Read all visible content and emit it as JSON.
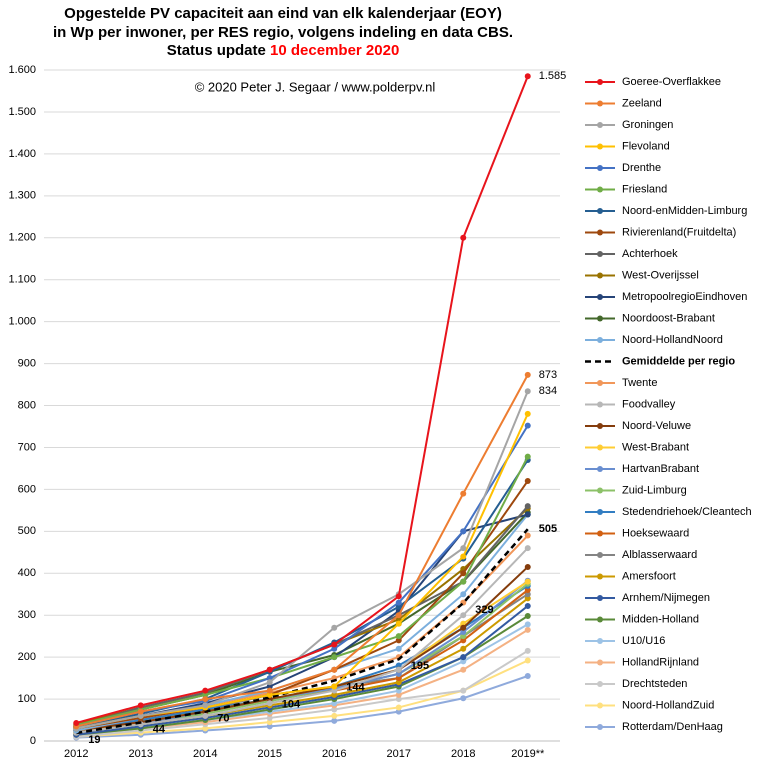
{
  "chart_data": {
    "type": "line",
    "title": "Opgestelde PV capaciteit aan eind van elk kalenderjaar (EOY)",
    "subtitle": "in Wp per inwoner, per RES regio, volgens indeling  en data CBS.",
    "status_label": "Status update",
    "status_date": "10 december 2020",
    "status_date_color": "#ff0000",
    "annotation": "© 2020 Peter J. Segaar / www.polderpv.nl",
    "categories": [
      "2012",
      "2013",
      "2014",
      "2015",
      "2016",
      "2017",
      "2018",
      "2019**"
    ],
    "ylim": [
      0,
      1600
    ],
    "yticks": [
      0,
      100,
      200,
      300,
      400,
      500,
      600,
      700,
      800,
      900,
      {
        "value": 1000,
        "label": "1.000"
      },
      {
        "value": 1100,
        "label": "1.100"
      },
      {
        "value": 1200,
        "label": "1.200"
      },
      {
        "value": 1300,
        "label": "1.300"
      },
      {
        "value": 1400,
        "label": "1.400"
      },
      {
        "value": 1500,
        "label": "1.500"
      },
      {
        "value": 1600,
        "label": "1.600"
      }
    ],
    "grid": true,
    "legend": "right",
    "series": [
      {
        "name": "Goeree-Overflakkee",
        "color": "#e8141c",
        "values": [
          43,
          85,
          120,
          170,
          230,
          345,
          1200,
          1585
        ],
        "value_labels": [
          null,
          null,
          null,
          null,
          null,
          null,
          null,
          "1.585"
        ]
      },
      {
        "name": "Zeeland",
        "color": "#ed7d31",
        "values": [
          35,
          70,
          100,
          120,
          170,
          300,
          590,
          873
        ],
        "value_labels": [
          null,
          null,
          null,
          null,
          null,
          null,
          null,
          "873"
        ]
      },
      {
        "name": "Groningen",
        "color": "#a5a5a5",
        "values": [
          30,
          60,
          85,
          140,
          270,
          350,
          460,
          834
        ],
        "value_labels": [
          null,
          null,
          null,
          null,
          null,
          null,
          null,
          "834"
        ]
      },
      {
        "name": "Flevoland",
        "color": "#ffc000",
        "values": [
          30,
          60,
          80,
          110,
          130,
          280,
          440,
          780
        ]
      },
      {
        "name": "Drenthe",
        "color": "#4472c4",
        "values": [
          35,
          70,
          95,
          150,
          220,
          330,
          500,
          752
        ]
      },
      {
        "name": "Friesland",
        "color": "#70ad47",
        "values": [
          38,
          75,
          110,
          150,
          200,
          250,
          380,
          678
        ]
      },
      {
        "name": "Noord-enMidden-Limburg",
        "color": "#255e91",
        "values": [
          32,
          65,
          100,
          165,
          235,
          320,
          435,
          670
        ]
      },
      {
        "name": "Rivierenland(Fruitdelta)",
        "color": "#9e480e",
        "values": [
          30,
          55,
          80,
          110,
          170,
          240,
          400,
          620
        ]
      },
      {
        "name": "Achterhoek",
        "color": "#636363",
        "values": [
          35,
          80,
          115,
          170,
          230,
          300,
          380,
          560
        ]
      },
      {
        "name": "West-Overijssel",
        "color": "#997300",
        "values": [
          40,
          80,
          115,
          170,
          230,
          290,
          410,
          555
        ]
      },
      {
        "name": "MetropoolregioEindhoven",
        "color": "#264478",
        "values": [
          30,
          60,
          90,
          130,
          200,
          310,
          500,
          540
        ]
      },
      {
        "name": "Noordoost-Brabant",
        "color": "#43682b",
        "values": [
          35,
          75,
          110,
          165,
          205,
          280,
          380,
          545
        ]
      },
      {
        "name": "Noord-HollandNoord",
        "color": "#7cafdd",
        "values": [
          25,
          55,
          85,
          120,
          170,
          220,
          350,
          540
        ]
      },
      {
        "name": "Gemiddelde per regio",
        "color": "#000000",
        "style": "dashed",
        "values": [
          19,
          44,
          70,
          104,
          144,
          195,
          329,
          505
        ],
        "value_labels": [
          "19",
          "44",
          "70",
          "104",
          "144",
          "195",
          "329",
          "505"
        ]
      },
      {
        "name": "Twente",
        "color": "#f1975a",
        "values": [
          30,
          60,
          85,
          115,
          150,
          200,
          330,
          490
        ]
      },
      {
        "name": "Foodvalley",
        "color": "#b7b7b7",
        "values": [
          20,
          40,
          60,
          90,
          120,
          170,
          300,
          460
        ]
      },
      {
        "name": "Noord-Veluwe",
        "color": "#843c0c",
        "values": [
          25,
          45,
          70,
          100,
          130,
          170,
          270,
          415
        ]
      },
      {
        "name": "West-Brabant",
        "color": "#ffcd33",
        "values": [
          20,
          45,
          70,
          100,
          130,
          170,
          280,
          380
        ]
      },
      {
        "name": "HartvanBrabant",
        "color": "#698ed0",
        "values": [
          20,
          40,
          70,
          100,
          125,
          160,
          260,
          382
        ]
      },
      {
        "name": "Zuid-Limburg",
        "color": "#8cc168",
        "values": [
          20,
          40,
          65,
          95,
          125,
          160,
          250,
          375
        ]
      },
      {
        "name": "Stedendriehoek/Cleantech",
        "color": "#327dc2",
        "values": [
          25,
          50,
          75,
          100,
          130,
          180,
          270,
          370
        ]
      },
      {
        "name": "Hoeksewaard",
        "color": "#d26012",
        "values": [
          20,
          45,
          70,
          100,
          120,
          150,
          240,
          360
        ]
      },
      {
        "name": "Alblasserwaard",
        "color": "#848484",
        "values": [
          25,
          50,
          75,
          110,
          130,
          150,
          250,
          350
        ]
      },
      {
        "name": "Amersfoort",
        "color": "#cc9a00",
        "values": [
          20,
          40,
          60,
          85,
          110,
          140,
          220,
          340
        ]
      },
      {
        "name": "Arnhem/Nijmegen",
        "color": "#335aa1",
        "values": [
          15,
          35,
          55,
          80,
          105,
          135,
          200,
          322
        ]
      },
      {
        "name": "Midden-Holland",
        "color": "#5a8a39",
        "values": [
          15,
          30,
          50,
          75,
          100,
          130,
          200,
          298
        ]
      },
      {
        "name": "U10/U16",
        "color": "#9dc3e6",
        "values": [
          15,
          30,
          50,
          70,
          90,
          120,
          190,
          278
        ]
      },
      {
        "name": "HollandRijnland",
        "color": "#f4b183",
        "values": [
          15,
          30,
          45,
          65,
          85,
          110,
          170,
          265
        ]
      },
      {
        "name": "Drechtsteden",
        "color": "#c9c9c9",
        "values": [
          10,
          25,
          40,
          55,
          75,
          100,
          120,
          215
        ]
      },
      {
        "name": "Noord-HollandZuid",
        "color": "#ffe07f",
        "values": [
          10,
          20,
          30,
          45,
          60,
          80,
          120,
          192
        ]
      },
      {
        "name": "Rotterdam/DenHaag",
        "color": "#8faadc",
        "values": [
          8,
          15,
          25,
          35,
          48,
          70,
          102,
          155
        ]
      }
    ]
  }
}
